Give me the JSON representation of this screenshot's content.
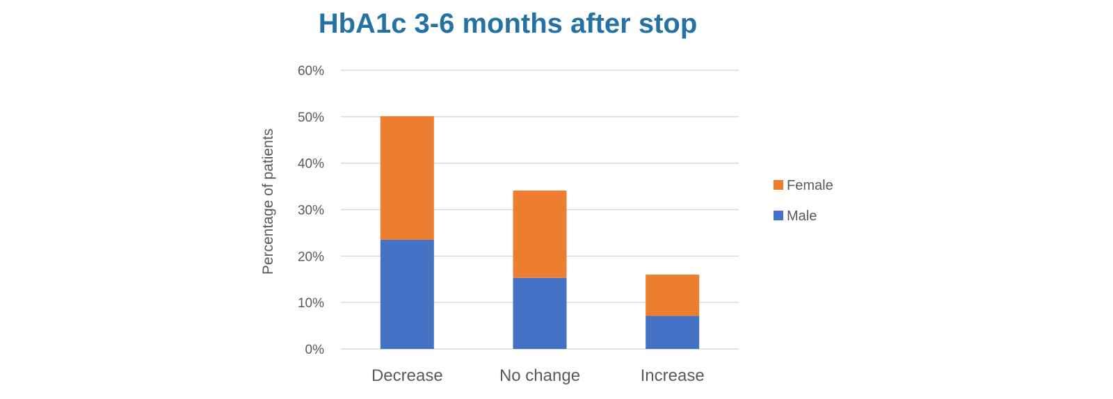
{
  "chart_data": {
    "type": "bar",
    "stacked": true,
    "title": "HbA1c 3-6 months after stop",
    "xlabel": "",
    "ylabel": "Percentage of patients",
    "ylim": [
      0,
      60
    ],
    "yticks": [
      "0%",
      "10%",
      "20%",
      "30%",
      "40%",
      "50%",
      "60%"
    ],
    "categories": [
      "Decrease",
      "No change",
      "Increase"
    ],
    "series": [
      {
        "name": "Male",
        "color": "#4472c4",
        "values": [
          23.5,
          15.3,
          7.1
        ]
      },
      {
        "name": "Female",
        "color": "#ed7d31",
        "values": [
          26.6,
          18.8,
          8.9
        ]
      }
    ],
    "legend": {
      "position": "right",
      "order": [
        "Female",
        "Male"
      ]
    },
    "grid": true
  }
}
